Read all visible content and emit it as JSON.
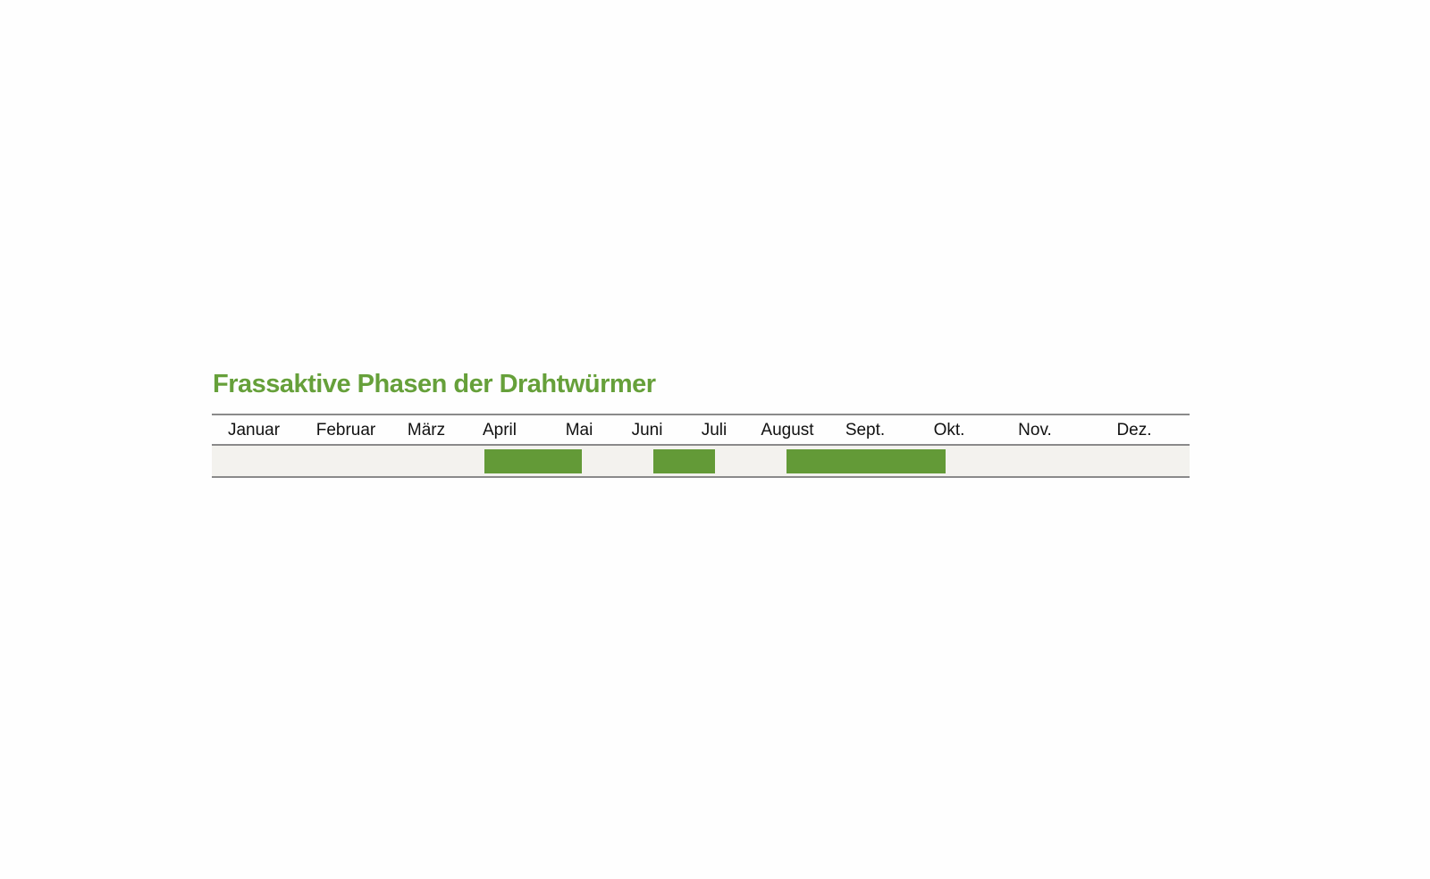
{
  "chart_data": {
    "type": "bar",
    "subtype": "timeline",
    "title": "Frassaktive Phasen der Drahtwürmer",
    "categories": [
      "Januar",
      "Februar",
      "März",
      "April",
      "Mai",
      "Juni",
      "Juli",
      "August",
      "Sept.",
      "Okt.",
      "Nov.",
      "Dez."
    ],
    "phases": [
      {
        "start": "April",
        "end": "Mai"
      },
      {
        "start": "Juni",
        "end": "Juli"
      },
      {
        "start": "August",
        "end": "Okt."
      }
    ],
    "grid": false,
    "legend": "none",
    "colors": {
      "title": "#66a03a",
      "bar": "#639a37",
      "row_background": "#f3f2ee"
    }
  }
}
